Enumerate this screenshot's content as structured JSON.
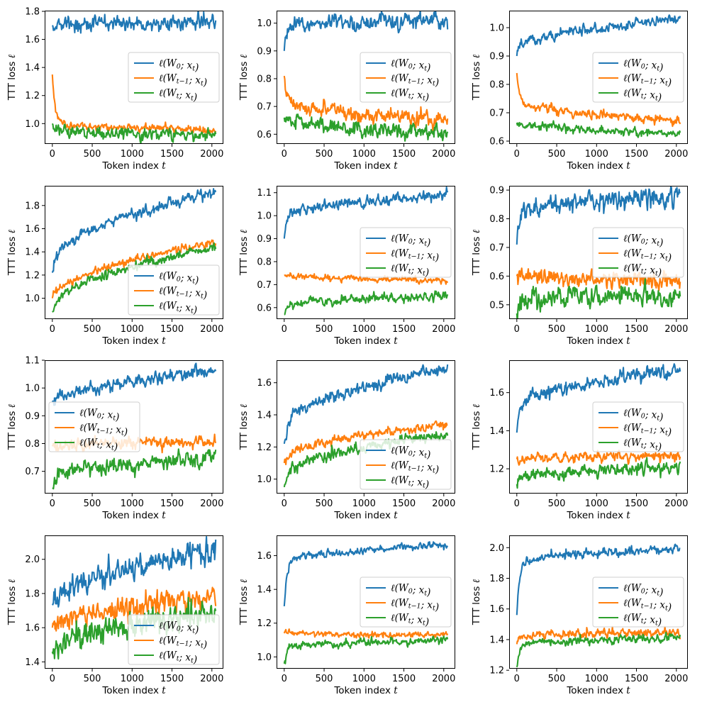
{
  "chart_data": [
    {
      "type": "line",
      "x_range": [
        0,
        2048
      ],
      "xlim": [
        -96,
        2144
      ],
      "ylim": [
        0.855,
        1.805
      ],
      "yticks": [
        1.0,
        1.2,
        1.4,
        1.6,
        1.8
      ],
      "legend": "center-right",
      "series": [
        {
          "name": "ℓ(W0; xt)",
          "color": "#1f77b4",
          "start": 1.7,
          "end": 1.72,
          "noise": 0.025
        },
        {
          "name": "ℓ(Wt−1; xt)",
          "color": "#ff7f0e",
          "start": 1.35,
          "end": 0.96,
          "noise": 0.012,
          "fast": 0.35
        },
        {
          "name": "ℓ(Wt; xt)",
          "color": "#2ca02c",
          "start": 1.0,
          "end": 0.92,
          "noise": 0.018,
          "fast": 0.05
        }
      ]
    },
    {
      "type": "line",
      "x_range": [
        0,
        2048
      ],
      "xlim": [
        -96,
        2144
      ],
      "ylim": [
        0.565,
        1.045
      ],
      "yticks": [
        0.6,
        0.7,
        0.8,
        0.9,
        1.0
      ],
      "legend": "center-right",
      "series": [
        {
          "name": "ℓ(W0; xt)",
          "color": "#1f77b4",
          "start": 0.9,
          "end": 1.01,
          "noise": 0.013,
          "fast": 0.09
        },
        {
          "name": "ℓ(Wt−1; xt)",
          "color": "#ff7f0e",
          "start": 0.81,
          "end": 0.65,
          "noise": 0.012,
          "fast": 0.09
        },
        {
          "name": "ℓ(Wt; xt)",
          "color": "#2ca02c",
          "start": 0.66,
          "end": 0.6,
          "noise": 0.012
        }
      ]
    },
    {
      "type": "line",
      "x_range": [
        0,
        2048
      ],
      "xlim": [
        -96,
        2144
      ],
      "ylim": [
        0.59,
        1.06
      ],
      "yticks": [
        0.6,
        0.7,
        0.8,
        0.9,
        1.0
      ],
      "legend": "center-right",
      "series": [
        {
          "name": "ℓ(W0; xt)",
          "color": "#1f77b4",
          "start": 0.9,
          "end": 1.03,
          "noise": 0.008,
          "fast": 0.03
        },
        {
          "name": "ℓ(Wt−1; xt)",
          "color": "#ff7f0e",
          "start": 0.84,
          "end": 0.67,
          "noise": 0.008,
          "fast": 0.1
        },
        {
          "name": "ℓ(Wt; xt)",
          "color": "#2ca02c",
          "start": 0.665,
          "end": 0.625,
          "noise": 0.006
        }
      ]
    },
    {
      "type": "line",
      "x_range": [
        0,
        2048
      ],
      "xlim": [
        -96,
        2144
      ],
      "ylim": [
        0.82,
        1.97
      ],
      "yticks": [
        1.0,
        1.2,
        1.4,
        1.6,
        1.8
      ],
      "legend": "lower-right",
      "series": [
        {
          "name": "ℓ(W0; xt)",
          "color": "#1f77b4",
          "start": 1.22,
          "end": 1.92,
          "noise": 0.022,
          "fast": 0.1
        },
        {
          "name": "ℓ(Wt−1; xt)",
          "color": "#ff7f0e",
          "start": 1.0,
          "end": 1.48,
          "noise": 0.015
        },
        {
          "name": "ℓ(Wt; xt)",
          "color": "#2ca02c",
          "start": 0.88,
          "end": 1.44,
          "noise": 0.018,
          "fast": 0.04
        }
      ]
    },
    {
      "type": "line",
      "x_range": [
        0,
        2048
      ],
      "xlim": [
        -96,
        2144
      ],
      "ylim": [
        0.55,
        1.13
      ],
      "yticks": [
        0.6,
        0.7,
        0.8,
        0.9,
        1.0,
        1.1
      ],
      "legend": "center-right",
      "series": [
        {
          "name": "ℓ(W0; xt)",
          "color": "#1f77b4",
          "start": 0.9,
          "end": 1.09,
          "noise": 0.01,
          "fast": 0.1
        },
        {
          "name": "ℓ(Wt−1; xt)",
          "color": "#ff7f0e",
          "start": 0.74,
          "end": 0.72,
          "noise": 0.006
        },
        {
          "name": "ℓ(Wt; xt)",
          "color": "#2ca02c",
          "start": 0.57,
          "end": 0.65,
          "noise": 0.008,
          "fast": 0.04
        }
      ]
    },
    {
      "type": "line",
      "x_range": [
        0,
        2048
      ],
      "xlim": [
        -96,
        2144
      ],
      "ylim": [
        0.45,
        0.915
      ],
      "yticks": [
        0.5,
        0.6,
        0.7,
        0.8,
        0.9
      ],
      "legend": "center-right",
      "series": [
        {
          "name": "ℓ(W0; xt)",
          "color": "#1f77b4",
          "start": 0.71,
          "end": 0.88,
          "noise": 0.015,
          "fast": 0.12
        },
        {
          "name": "ℓ(Wt−1; xt)",
          "color": "#ff7f0e",
          "start": 0.6,
          "end": 0.585,
          "noise": 0.013
        },
        {
          "name": "ℓ(Wt; xt)",
          "color": "#2ca02c",
          "start": 0.47,
          "end": 0.53,
          "noise": 0.016,
          "fast": 0.05
        }
      ]
    },
    {
      "type": "line",
      "x_range": [
        0,
        2048
      ],
      "xlim": [
        -96,
        2144
      ],
      "ylim": [
        0.62,
        1.1
      ],
      "yticks": [
        0.7,
        0.8,
        0.9,
        1.0,
        1.1
      ],
      "legend": "center-left",
      "series": [
        {
          "name": "ℓ(W0; xt)",
          "color": "#1f77b4",
          "start": 0.95,
          "end": 1.06,
          "noise": 0.01
        },
        {
          "name": "ℓ(Wt−1; xt)",
          "color": "#ff7f0e",
          "start": 0.79,
          "end": 0.81,
          "noise": 0.01
        },
        {
          "name": "ℓ(Wt; xt)",
          "color": "#2ca02c",
          "start": 0.64,
          "end": 0.75,
          "noise": 0.013,
          "fast": 0.04
        }
      ]
    },
    {
      "type": "line",
      "x_range": [
        0,
        2048
      ],
      "xlim": [
        -96,
        2144
      ],
      "ylim": [
        0.91,
        1.74
      ],
      "yticks": [
        1.0,
        1.2,
        1.4,
        1.6
      ],
      "legend": "lower-right",
      "series": [
        {
          "name": "ℓ(W0; xt)",
          "color": "#1f77b4",
          "start": 1.22,
          "end": 1.69,
          "noise": 0.018,
          "fast": 0.1
        },
        {
          "name": "ℓ(Wt−1; xt)",
          "color": "#ff7f0e",
          "start": 1.1,
          "end": 1.34,
          "noise": 0.012,
          "fast": 0.03
        },
        {
          "name": "ℓ(Wt; xt)",
          "color": "#2ca02c",
          "start": 0.95,
          "end": 1.28,
          "noise": 0.016,
          "fast": 0.07
        }
      ]
    },
    {
      "type": "line",
      "x_range": [
        0,
        2048
      ],
      "xlim": [
        -96,
        2144
      ],
      "ylim": [
        1.07,
        1.77
      ],
      "yticks": [
        1.2,
        1.4,
        1.6
      ],
      "legend": "center-right",
      "series": [
        {
          "name": "ℓ(W0; xt)",
          "color": "#1f77b4",
          "start": 1.39,
          "end": 1.72,
          "noise": 0.016,
          "fast": 0.14
        },
        {
          "name": "ℓ(Wt−1; xt)",
          "color": "#ff7f0e",
          "start": 1.25,
          "end": 1.27,
          "noise": 0.012
        },
        {
          "name": "ℓ(Wt; xt)",
          "color": "#2ca02c",
          "start": 1.12,
          "end": 1.21,
          "noise": 0.014,
          "fast": 0.03
        }
      ]
    },
    {
      "type": "line",
      "x_range": [
        0,
        2048
      ],
      "xlim": [
        -96,
        2144
      ],
      "ylim": [
        1.36,
        2.14
      ],
      "yticks": [
        1.4,
        1.6,
        1.8,
        2.0
      ],
      "legend": "lower-right",
      "series": [
        {
          "name": "ℓ(W0; xt)",
          "color": "#1f77b4",
          "start": 1.74,
          "end": 2.05,
          "noise": 0.035
        },
        {
          "name": "ℓ(Wt−1; xt)",
          "color": "#ff7f0e",
          "start": 1.6,
          "end": 1.78,
          "noise": 0.03
        },
        {
          "name": "ℓ(Wt; xt)",
          "color": "#2ca02c",
          "start": 1.46,
          "end": 1.69,
          "noise": 0.035
        }
      ]
    },
    {
      "type": "line",
      "x_range": [
        0,
        2048
      ],
      "xlim": [
        -96,
        2144
      ],
      "ylim": [
        0.93,
        1.72
      ],
      "yticks": [
        1.0,
        1.2,
        1.4,
        1.6
      ],
      "legend": "center-right",
      "series": [
        {
          "name": "ℓ(W0; xt)",
          "color": "#1f77b4",
          "start": 1.3,
          "end": 1.66,
          "noise": 0.01,
          "fast": 0.27
        },
        {
          "name": "ℓ(Wt−1; xt)",
          "color": "#ff7f0e",
          "start": 1.14,
          "end": 1.13,
          "noise": 0.008
        },
        {
          "name": "ℓ(Wt; xt)",
          "color": "#2ca02c",
          "start": 0.96,
          "end": 1.1,
          "noise": 0.01,
          "fast": 0.1
        }
      ]
    },
    {
      "type": "line",
      "x_range": [
        0,
        2048
      ],
      "xlim": [
        -96,
        2144
      ],
      "ylim": [
        1.21,
        2.08
      ],
      "yticks": [
        1.2,
        1.4,
        1.6,
        1.8,
        2.0
      ],
      "legend": "center-right",
      "series": [
        {
          "name": "ℓ(W0; xt)",
          "color": "#1f77b4",
          "start": 1.56,
          "end": 1.99,
          "noise": 0.013,
          "fast": 0.35
        },
        {
          "name": "ℓ(Wt−1; xt)",
          "color": "#ff7f0e",
          "start": 1.37,
          "end": 1.45,
          "noise": 0.012,
          "fast": 0.05
        },
        {
          "name": "ℓ(Wt; xt)",
          "color": "#2ca02c",
          "start": 1.22,
          "end": 1.41,
          "noise": 0.012,
          "fast": 0.15
        }
      ]
    }
  ],
  "axes": {
    "xlabel_text": "Token index ",
    "xlabel_var": "t",
    "ylabel_text": "TTT loss ",
    "ylabel_var": "ℓ",
    "xticks": [
      0,
      500,
      1000,
      1500,
      2000
    ]
  },
  "legend_labels": [
    {
      "pre": "ℓ(W",
      "sub": "0",
      "post": "; x",
      "sub2": "t",
      "end": ")"
    },
    {
      "pre": "ℓ(W",
      "sub": "t−1",
      "post": "; x",
      "sub2": "t",
      "end": ")"
    },
    {
      "pre": "ℓ(W",
      "sub": "t",
      "post": "; x",
      "sub2": "t",
      "end": ")"
    }
  ]
}
